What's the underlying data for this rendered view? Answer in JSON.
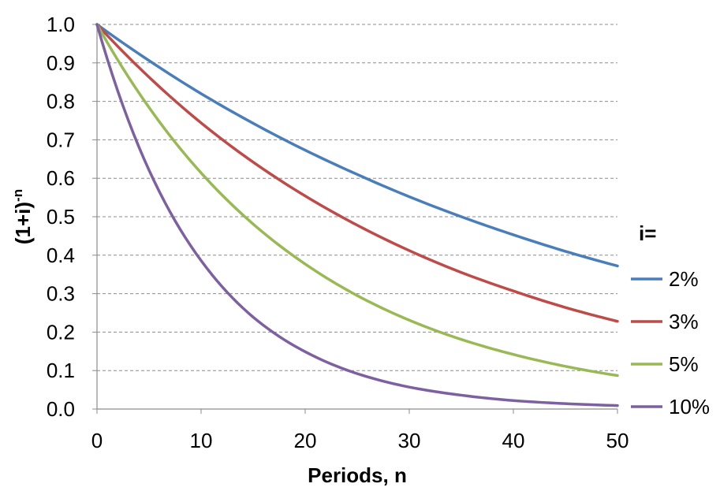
{
  "chart_data": {
    "type": "line",
    "title": "",
    "xlabel": "Periods, n",
    "ylabel": "(1+i)",
    "ylabel_superscript": "-n",
    "xlim": [
      0,
      50
    ],
    "ylim": [
      0,
      1
    ],
    "x_ticks": [
      "0",
      "10",
      "20",
      "30",
      "40",
      "50"
    ],
    "y_ticks": [
      "0.0",
      "0.1",
      "0.2",
      "0.3",
      "0.4",
      "0.5",
      "0.6",
      "0.7",
      "0.8",
      "0.9",
      "1.0"
    ],
    "grid": "horizontal-dashed",
    "legend_position": "right",
    "legend_title": "i=",
    "x": [
      0,
      5,
      10,
      15,
      20,
      25,
      30,
      35,
      40,
      45,
      50
    ],
    "series": [
      {
        "name": "2%",
        "color": "#4a7ebb",
        "values": [
          1.0,
          0.906,
          0.82,
          0.743,
          0.673,
          0.61,
          0.552,
          0.5,
          0.453,
          0.41,
          0.372
        ]
      },
      {
        "name": "3%",
        "color": "#be4b48",
        "values": [
          1.0,
          0.863,
          0.744,
          0.642,
          0.554,
          0.478,
          0.412,
          0.355,
          0.307,
          0.264,
          0.228
        ]
      },
      {
        "name": "5%",
        "color": "#98b954",
        "values": [
          1.0,
          0.784,
          0.614,
          0.481,
          0.377,
          0.295,
          0.231,
          0.181,
          0.142,
          0.111,
          0.087
        ]
      },
      {
        "name": "10%",
        "color": "#7d60a0",
        "values": [
          1.0,
          0.621,
          0.386,
          0.239,
          0.149,
          0.092,
          0.057,
          0.036,
          0.022,
          0.014,
          0.009
        ]
      }
    ]
  }
}
